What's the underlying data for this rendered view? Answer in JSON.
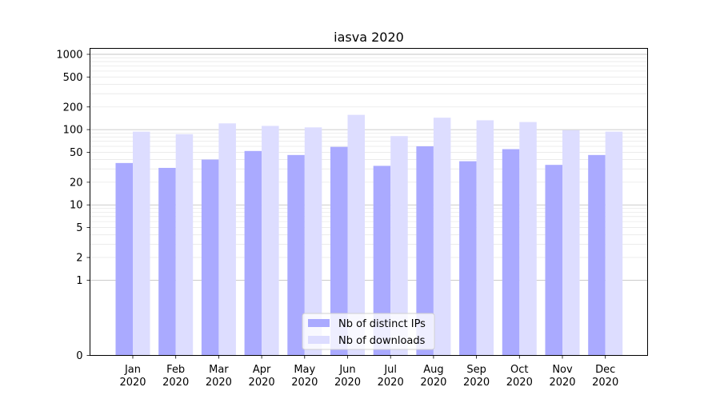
{
  "chart_data": {
    "type": "bar",
    "title": "iasva 2020",
    "xlabel": "",
    "ylabel": "",
    "yscale": "symlog",
    "ylim": [
      0,
      1200
    ],
    "yticks": [
      0,
      1,
      2,
      5,
      10,
      20,
      50,
      100,
      200,
      500,
      1000
    ],
    "ytick_labels": [
      "0",
      "1",
      "2",
      "5",
      "10",
      "20",
      "50",
      "100",
      "200",
      "500",
      "1000"
    ],
    "grid": true,
    "legend_position": "bottom-center",
    "categories": [
      {
        "month": "Jan",
        "year": "2020"
      },
      {
        "month": "Feb",
        "year": "2020"
      },
      {
        "month": "Mar",
        "year": "2020"
      },
      {
        "month": "Apr",
        "year": "2020"
      },
      {
        "month": "May",
        "year": "2020"
      },
      {
        "month": "Jun",
        "year": "2020"
      },
      {
        "month": "Jul",
        "year": "2020"
      },
      {
        "month": "Aug",
        "year": "2020"
      },
      {
        "month": "Sep",
        "year": "2020"
      },
      {
        "month": "Oct",
        "year": "2020"
      },
      {
        "month": "Nov",
        "year": "2020"
      },
      {
        "month": "Dec",
        "year": "2020"
      }
    ],
    "series": [
      {
        "name": "Nb of distinct IPs",
        "color": "#aaaaff",
        "values": [
          36,
          31,
          40,
          52,
          46,
          59,
          33,
          60,
          38,
          55,
          34,
          46
        ]
      },
      {
        "name": "Nb of downloads",
        "color": "#ddddff",
        "values": [
          94,
          87,
          121,
          112,
          107,
          157,
          82,
          144,
          133,
          126,
          98,
          94
        ]
      }
    ]
  }
}
